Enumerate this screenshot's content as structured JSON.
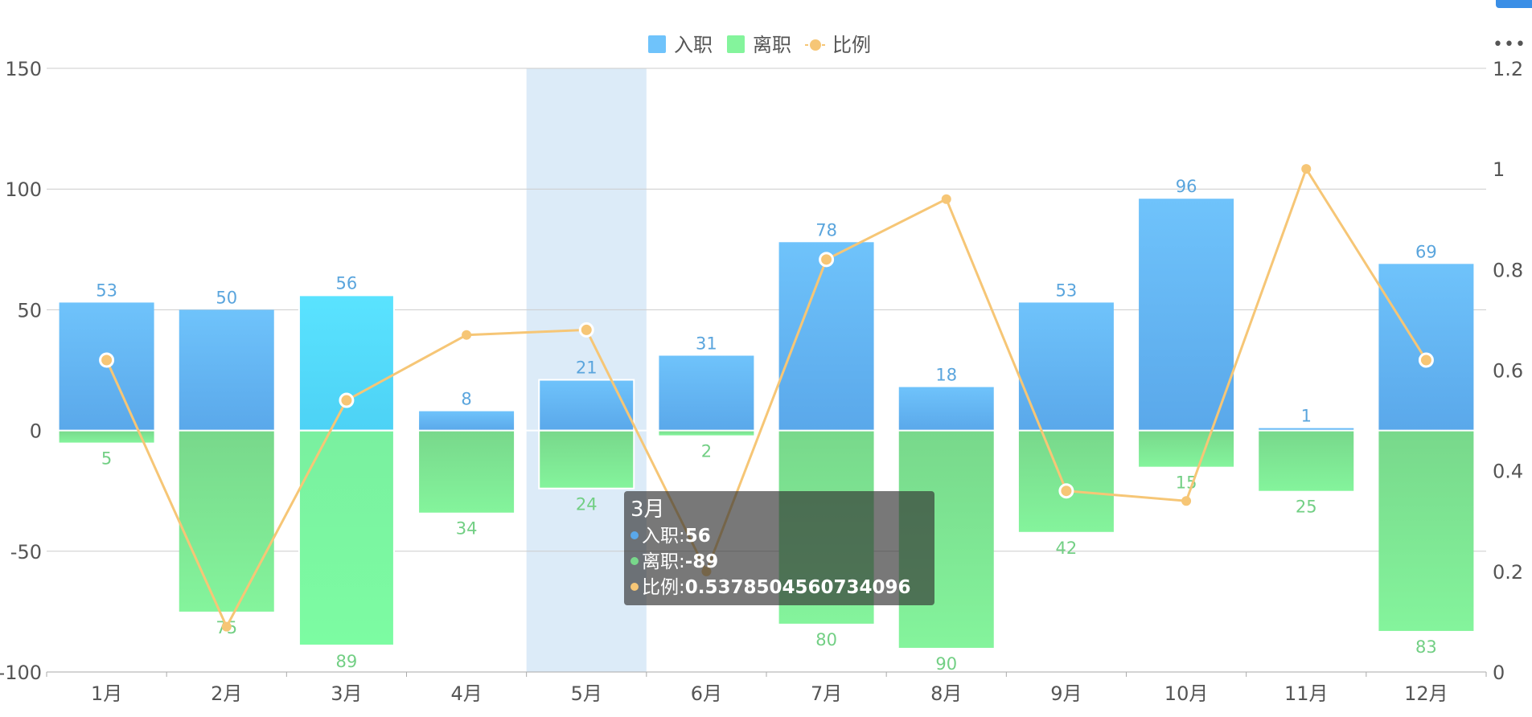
{
  "chart_data": {
    "type": "bar",
    "title": "",
    "categories": [
      "1月",
      "2月",
      "3月",
      "4月",
      "5月",
      "6月",
      "7月",
      "8月",
      "9月",
      "10月",
      "11月",
      "12月"
    ],
    "series": [
      {
        "name": "入职",
        "type": "bar",
        "axis": "left",
        "values": [
          53,
          50,
          56,
          8,
          21,
          31,
          78,
          18,
          53,
          96,
          1,
          69
        ],
        "labels": [
          "53",
          "50",
          "56",
          "8",
          "21",
          "31",
          "78",
          "18",
          "53",
          "96",
          "1",
          "69"
        ]
      },
      {
        "name": "离职",
        "type": "bar",
        "axis": "left",
        "values": [
          -5,
          -75,
          -89,
          -34,
          -24,
          -2,
          -80,
          -90,
          -42,
          -15,
          -25,
          -83
        ],
        "labels": [
          "5",
          "75",
          "89",
          "34",
          "24",
          "2",
          "80",
          "90",
          "42",
          "15",
          "25",
          "83"
        ]
      },
      {
        "name": "比例",
        "type": "line",
        "axis": "right",
        "values": [
          0.62,
          0.09,
          0.54,
          0.67,
          0.68,
          0.2,
          0.82,
          0.94,
          0.36,
          0.34,
          1.0,
          0.62
        ]
      }
    ],
    "y_left": {
      "min": -100,
      "max": 150,
      "ticks": [
        "-100",
        "-50",
        "0",
        "50",
        "100",
        "150"
      ]
    },
    "y_right": {
      "min": 0,
      "max": 1.2,
      "ticks": [
        "0",
        "0.2",
        "0.4",
        "0.6",
        "0.8",
        "1",
        "1.2"
      ]
    },
    "grid": true,
    "legend_position": "top-center",
    "highlighted_category": "5月",
    "emphasized_category": "3月",
    "colors": {
      "hire_top": "#6fc3fb",
      "hire_bottom": "#5aa8ea",
      "hire_emph_top": "#5ae3ff",
      "hire_emph_bottom": "#4dd2f5",
      "leave_top": "#78d88b",
      "leave_bottom": "#84f49c",
      "leave_emph_top": "#7af0a0",
      "leave_emph_bottom": "#7cfca2",
      "line": "#f6c676",
      "label_hire": "#5aa5dd",
      "label_leave": "#72cf84",
      "axis_text": "#555555",
      "grid": "#cccccc",
      "highlight": "#dcebf8"
    },
    "tooltip": {
      "title": "3月",
      "rows": [
        {
          "name": "入职",
          "sep": ":",
          "value": "56",
          "color": "#5aa8ea"
        },
        {
          "name": "离职",
          "sep": ":",
          "value": "-89",
          "color": "#78d88b"
        },
        {
          "name": "比例",
          "sep": ":",
          "value": "0.5378504560734096",
          "color": "#f6c676"
        }
      ]
    },
    "toolbar_icon": "more-dots-icon"
  }
}
